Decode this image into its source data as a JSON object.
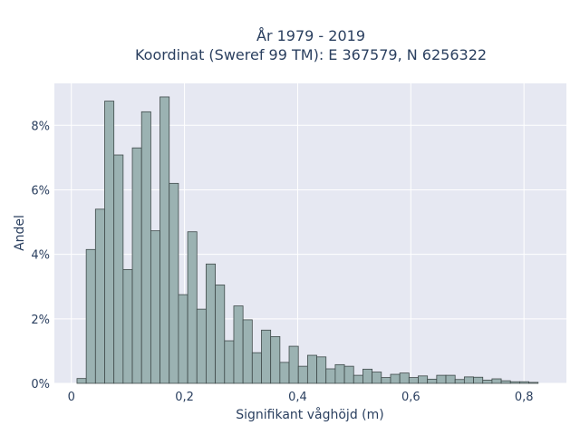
{
  "chart_data": {
    "type": "bar",
    "title_line1": "År 1979 - 2019",
    "title_line2": "Koordinat (Sweref 99 TM): E 367579, N 6256322",
    "xlabel": "Signifikant våghöjd (m)",
    "ylabel": "Andel",
    "xlim": [
      -0.03,
      0.875
    ],
    "ylim": [
      0,
      0.093
    ],
    "x_ticks": [
      {
        "value": 0,
        "label": "0"
      },
      {
        "value": 0.2,
        "label": "0,2"
      },
      {
        "value": 0.4,
        "label": "0,4"
      },
      {
        "value": 0.6,
        "label": "0,6"
      },
      {
        "value": 0.8,
        "label": "0,8"
      }
    ],
    "y_ticks": [
      {
        "value": 0,
        "label": "0%"
      },
      {
        "value": 0.02,
        "label": "2%"
      },
      {
        "value": 0.04,
        "label": "4%"
      },
      {
        "value": 0.06,
        "label": "6%"
      },
      {
        "value": 0.08,
        "label": "8%"
      }
    ],
    "grid": true,
    "bin_start": 0.01,
    "bin_width": 0.0163,
    "values": [
      0.0015,
      0.0415,
      0.054,
      0.0875,
      0.0708,
      0.0353,
      0.073,
      0.0842,
      0.0473,
      0.0888,
      0.062,
      0.0275,
      0.047,
      0.023,
      0.037,
      0.0305,
      0.0132,
      0.024,
      0.0197,
      0.0095,
      0.0165,
      0.0145,
      0.0065,
      0.0115,
      0.0053,
      0.0087,
      0.0082,
      0.0045,
      0.0058,
      0.0053,
      0.0025,
      0.0044,
      0.0035,
      0.0018,
      0.0028,
      0.0032,
      0.0018,
      0.0023,
      0.0013,
      0.0025,
      0.0025,
      0.0012,
      0.002,
      0.0019,
      0.001,
      0.0014,
      0.0008,
      0.0005,
      0.0005,
      0.0003
    ],
    "colors": {
      "bar_fill": "#9bb2b2",
      "bar_stroke": "#3f4a4a",
      "plot_background": "#e6e8f2",
      "grid": "#ffffff"
    }
  }
}
